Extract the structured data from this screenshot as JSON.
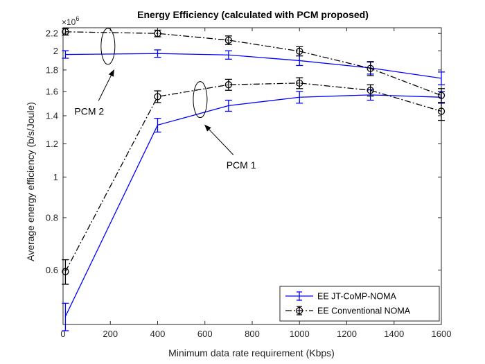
{
  "chart_data": {
    "type": "line",
    "title": "Energy Efficiency (calculated with PCM proposed)",
    "xlabel": "Minimum data rate requirement (Kbps)",
    "ylabel": "Average energy efficiency (b/s/Joule)",
    "y_multiplier_label": "×10",
    "y_multiplier_exponent": "6",
    "xlim": [
      0,
      1600
    ],
    "ylim": [
      0.445,
      2.27
    ],
    "y_scale": "log",
    "x_ticks": [
      0,
      200,
      400,
      600,
      800,
      1000,
      1200,
      1400,
      1600
    ],
    "x_tick_labels": [
      "0",
      "200",
      "400",
      "600",
      "800",
      "1000",
      "1200",
      "1400",
      "1600"
    ],
    "y_ticks": [
      0.6,
      0.8,
      1,
      1.2,
      1.4,
      1.6,
      1.8,
      2,
      2.2
    ],
    "y_tick_labels": [
      "0.6",
      "0.8",
      "1",
      "1.2",
      "1.4",
      "1.6",
      "1.8",
      "2",
      "2.2"
    ],
    "grid": false,
    "legend_position": "bottom-right",
    "series": [
      {
        "name": "EE JT-CoMP-NOMA",
        "color": "#0000ff",
        "line_style": "solid",
        "marker": "none",
        "groups": [
          {
            "label": "PCM 1",
            "x": [
              10,
              400,
              700,
              1000,
              1300,
              1600
            ],
            "y": [
              0.465,
              1.33,
              1.48,
              1.55,
              1.57,
              1.55
            ],
            "err": [
              0.035,
              0.05,
              0.045,
              0.05,
              0.045,
              0.05
            ]
          },
          {
            "label": "PCM 2",
            "x": [
              10,
              400,
              700,
              1000,
              1300,
              1600
            ],
            "y": [
              1.96,
              1.97,
              1.955,
              1.895,
              1.82,
              1.72
            ],
            "err": [
              0.04,
              0.04,
              0.045,
              0.05,
              0.06,
              0.06
            ]
          }
        ]
      },
      {
        "name": "EE Conventional NOMA",
        "color": "#000000",
        "line_style": "dashdot",
        "marker": "circle",
        "groups": [
          {
            "label": "PCM 1",
            "x": [
              10,
              400,
              700,
              1000,
              1300,
              1600
            ],
            "y": [
              0.595,
              1.555,
              1.66,
              1.675,
              1.61,
              1.435
            ],
            "err": [
              0.04,
              0.05,
              0.05,
              0.05,
              0.05,
              0.07
            ]
          },
          {
            "label": "PCM 2",
            "x": [
              10,
              400,
              700,
              1000,
              1300,
              1600
            ],
            "y": [
              2.22,
              2.2,
              2.12,
              1.995,
              1.815,
              1.565
            ],
            "err": [
              0.04,
              0.04,
              0.05,
              0.05,
              0.07,
              0.06
            ]
          }
        ]
      }
    ],
    "annotations": [
      {
        "text": "PCM 2",
        "ellipse_center": [
          190,
          2.05
        ],
        "arrow_tail": [
          150,
          1.52
        ],
        "arrow_head": [
          215,
          1.8
        ]
      },
      {
        "text": "PCM 1",
        "ellipse_center": [
          580,
          1.53
        ],
        "arrow_tail": [
          720,
          1.13
        ],
        "arrow_head": [
          600,
          1.33
        ]
      }
    ]
  }
}
